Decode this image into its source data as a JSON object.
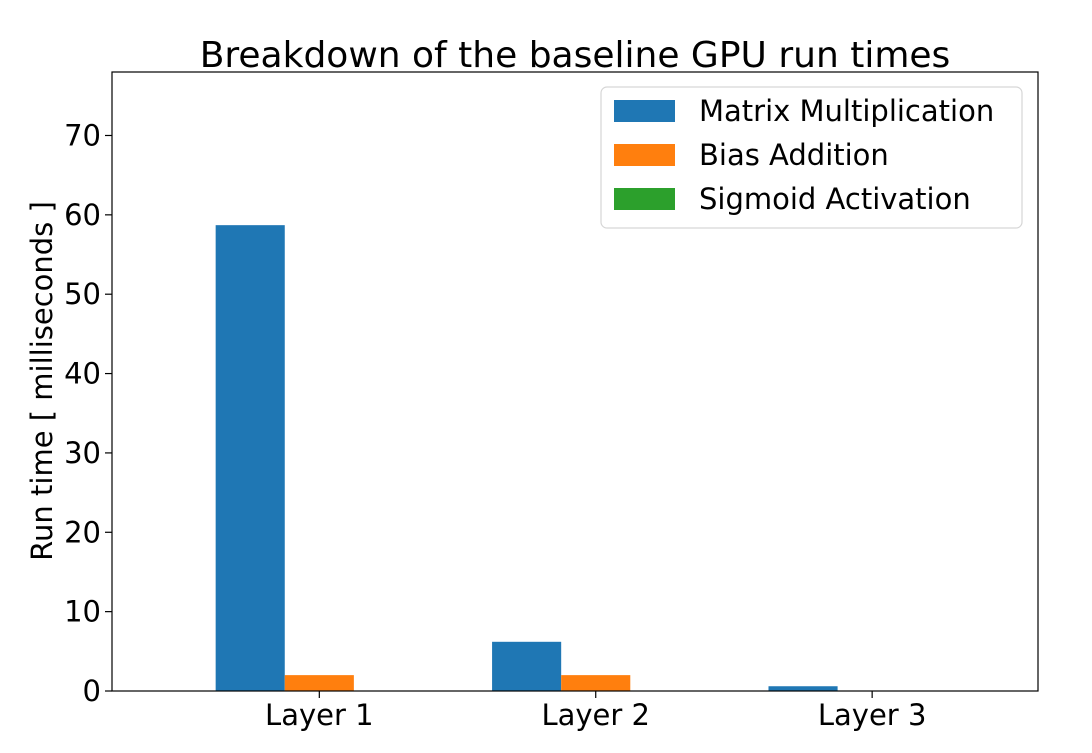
{
  "chart_data": {
    "type": "bar",
    "title": "Breakdown of the baseline GPU run times",
    "xlabel": "",
    "ylabel": "Run time [ milliseconds ]",
    "categories": [
      "Layer 1",
      "Layer 2",
      "Layer 3"
    ],
    "ylim": [
      0,
      78
    ],
    "yticks": [
      0,
      10,
      20,
      30,
      40,
      50,
      60,
      70
    ],
    "grid": false,
    "legend_position": "top-right",
    "series": [
      {
        "name": "Matrix Multiplication",
        "color": "#1f77b4",
        "values": [
          58.7,
          6.2,
          0.6
        ]
      },
      {
        "name": "Bias Addition",
        "color": "#ff7f0e",
        "values": [
          2.0,
          2.0,
          0.0
        ]
      },
      {
        "name": "Sigmoid Activation",
        "color": "#2ca02c",
        "values": [
          0.0,
          0.0,
          0.0
        ]
      }
    ]
  }
}
